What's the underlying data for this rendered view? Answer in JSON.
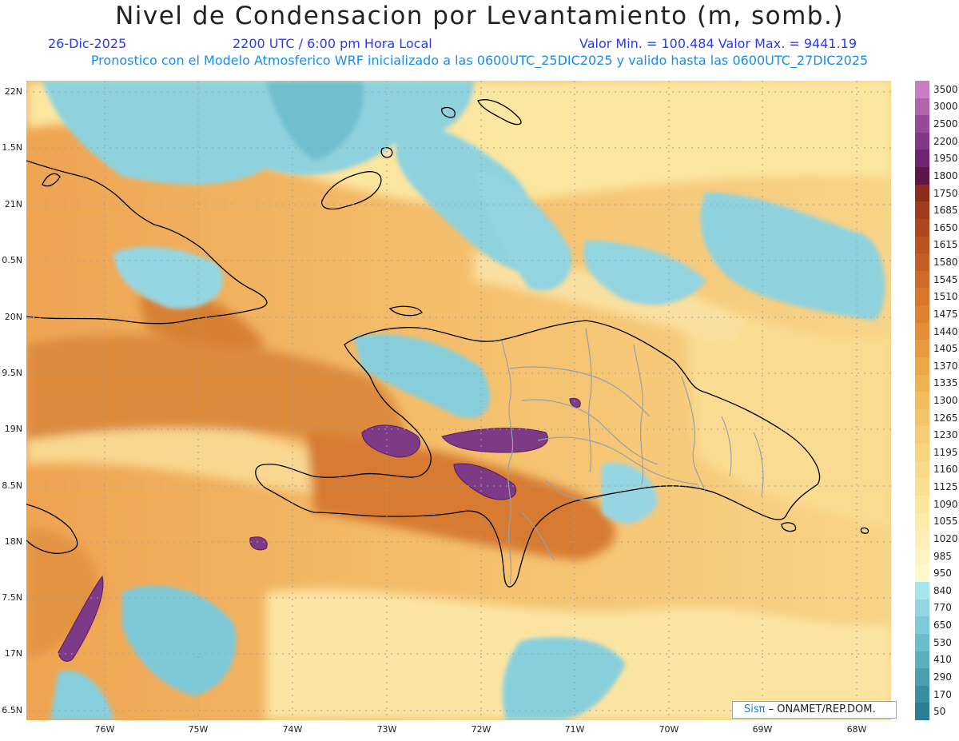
{
  "header": {
    "title": "Nivel de Condensacion por Levantamiento (m, somb.)",
    "date": "26-Dic-2025",
    "time": "2200 UTC / 6:00 pm Hora Local",
    "minmax": "Valor Min. = 100.484  Valor Max. = 9441.19",
    "model_line": "Pronostico con el Modelo Atmosferico WRF inicializado a las 0600UTC_25DIC2025 y valido hasta las  0600UTC_27DIC2025"
  },
  "axes": {
    "lat_labels": [
      "22N",
      "1.5N",
      "21N",
      "0.5N",
      "20N",
      "9.5N",
      "19N",
      "8.5N",
      "18N",
      "7.5N",
      "17N",
      "6.5N"
    ],
    "lon_labels": [
      "76W",
      "75W",
      "74W",
      "73W",
      "72W",
      "71W",
      "70W",
      "69W",
      "68W"
    ]
  },
  "colorbar": {
    "labels": [
      "3500",
      "3000",
      "2500",
      "2200",
      "1950",
      "1800",
      "1750",
      "1685",
      "1650",
      "1615",
      "1580",
      "1545",
      "1510",
      "1475",
      "1440",
      "1405",
      "1370",
      "1335",
      "1300",
      "1265",
      "1230",
      "1195",
      "1160",
      "1125",
      "1090",
      "1055",
      "1020",
      "985",
      "950",
      "840",
      "770",
      "650",
      "530",
      "410",
      "290",
      "170",
      "50"
    ],
    "colors": [
      "#c87ec4",
      "#b064ae",
      "#984a98",
      "#823884",
      "#6e2670",
      "#5e1646",
      "#8e2a1a",
      "#a23a1c",
      "#b0461e",
      "#bc5220",
      "#c65e24",
      "#d06a28",
      "#d8762c",
      "#de8230",
      "#e48e36",
      "#e89a3c",
      "#eca646",
      "#f0b250",
      "#f2bc5c",
      "#f4c468",
      "#f6cc74",
      "#f8d47e",
      "#f8da88",
      "#fae092",
      "#fae69c",
      "#fcecaa",
      "#fcf0b6",
      "#fef4c2",
      "#fef8cc",
      "#a8e4ec",
      "#92d6e2",
      "#7ecad8",
      "#6cbccc",
      "#5aaebe",
      "#4a9eb0",
      "#3a8ea2",
      "#2c7e94"
    ]
  },
  "credit": {
    "logo": "Sisπ",
    "text": "– ONAMET/REP.DOM."
  }
}
